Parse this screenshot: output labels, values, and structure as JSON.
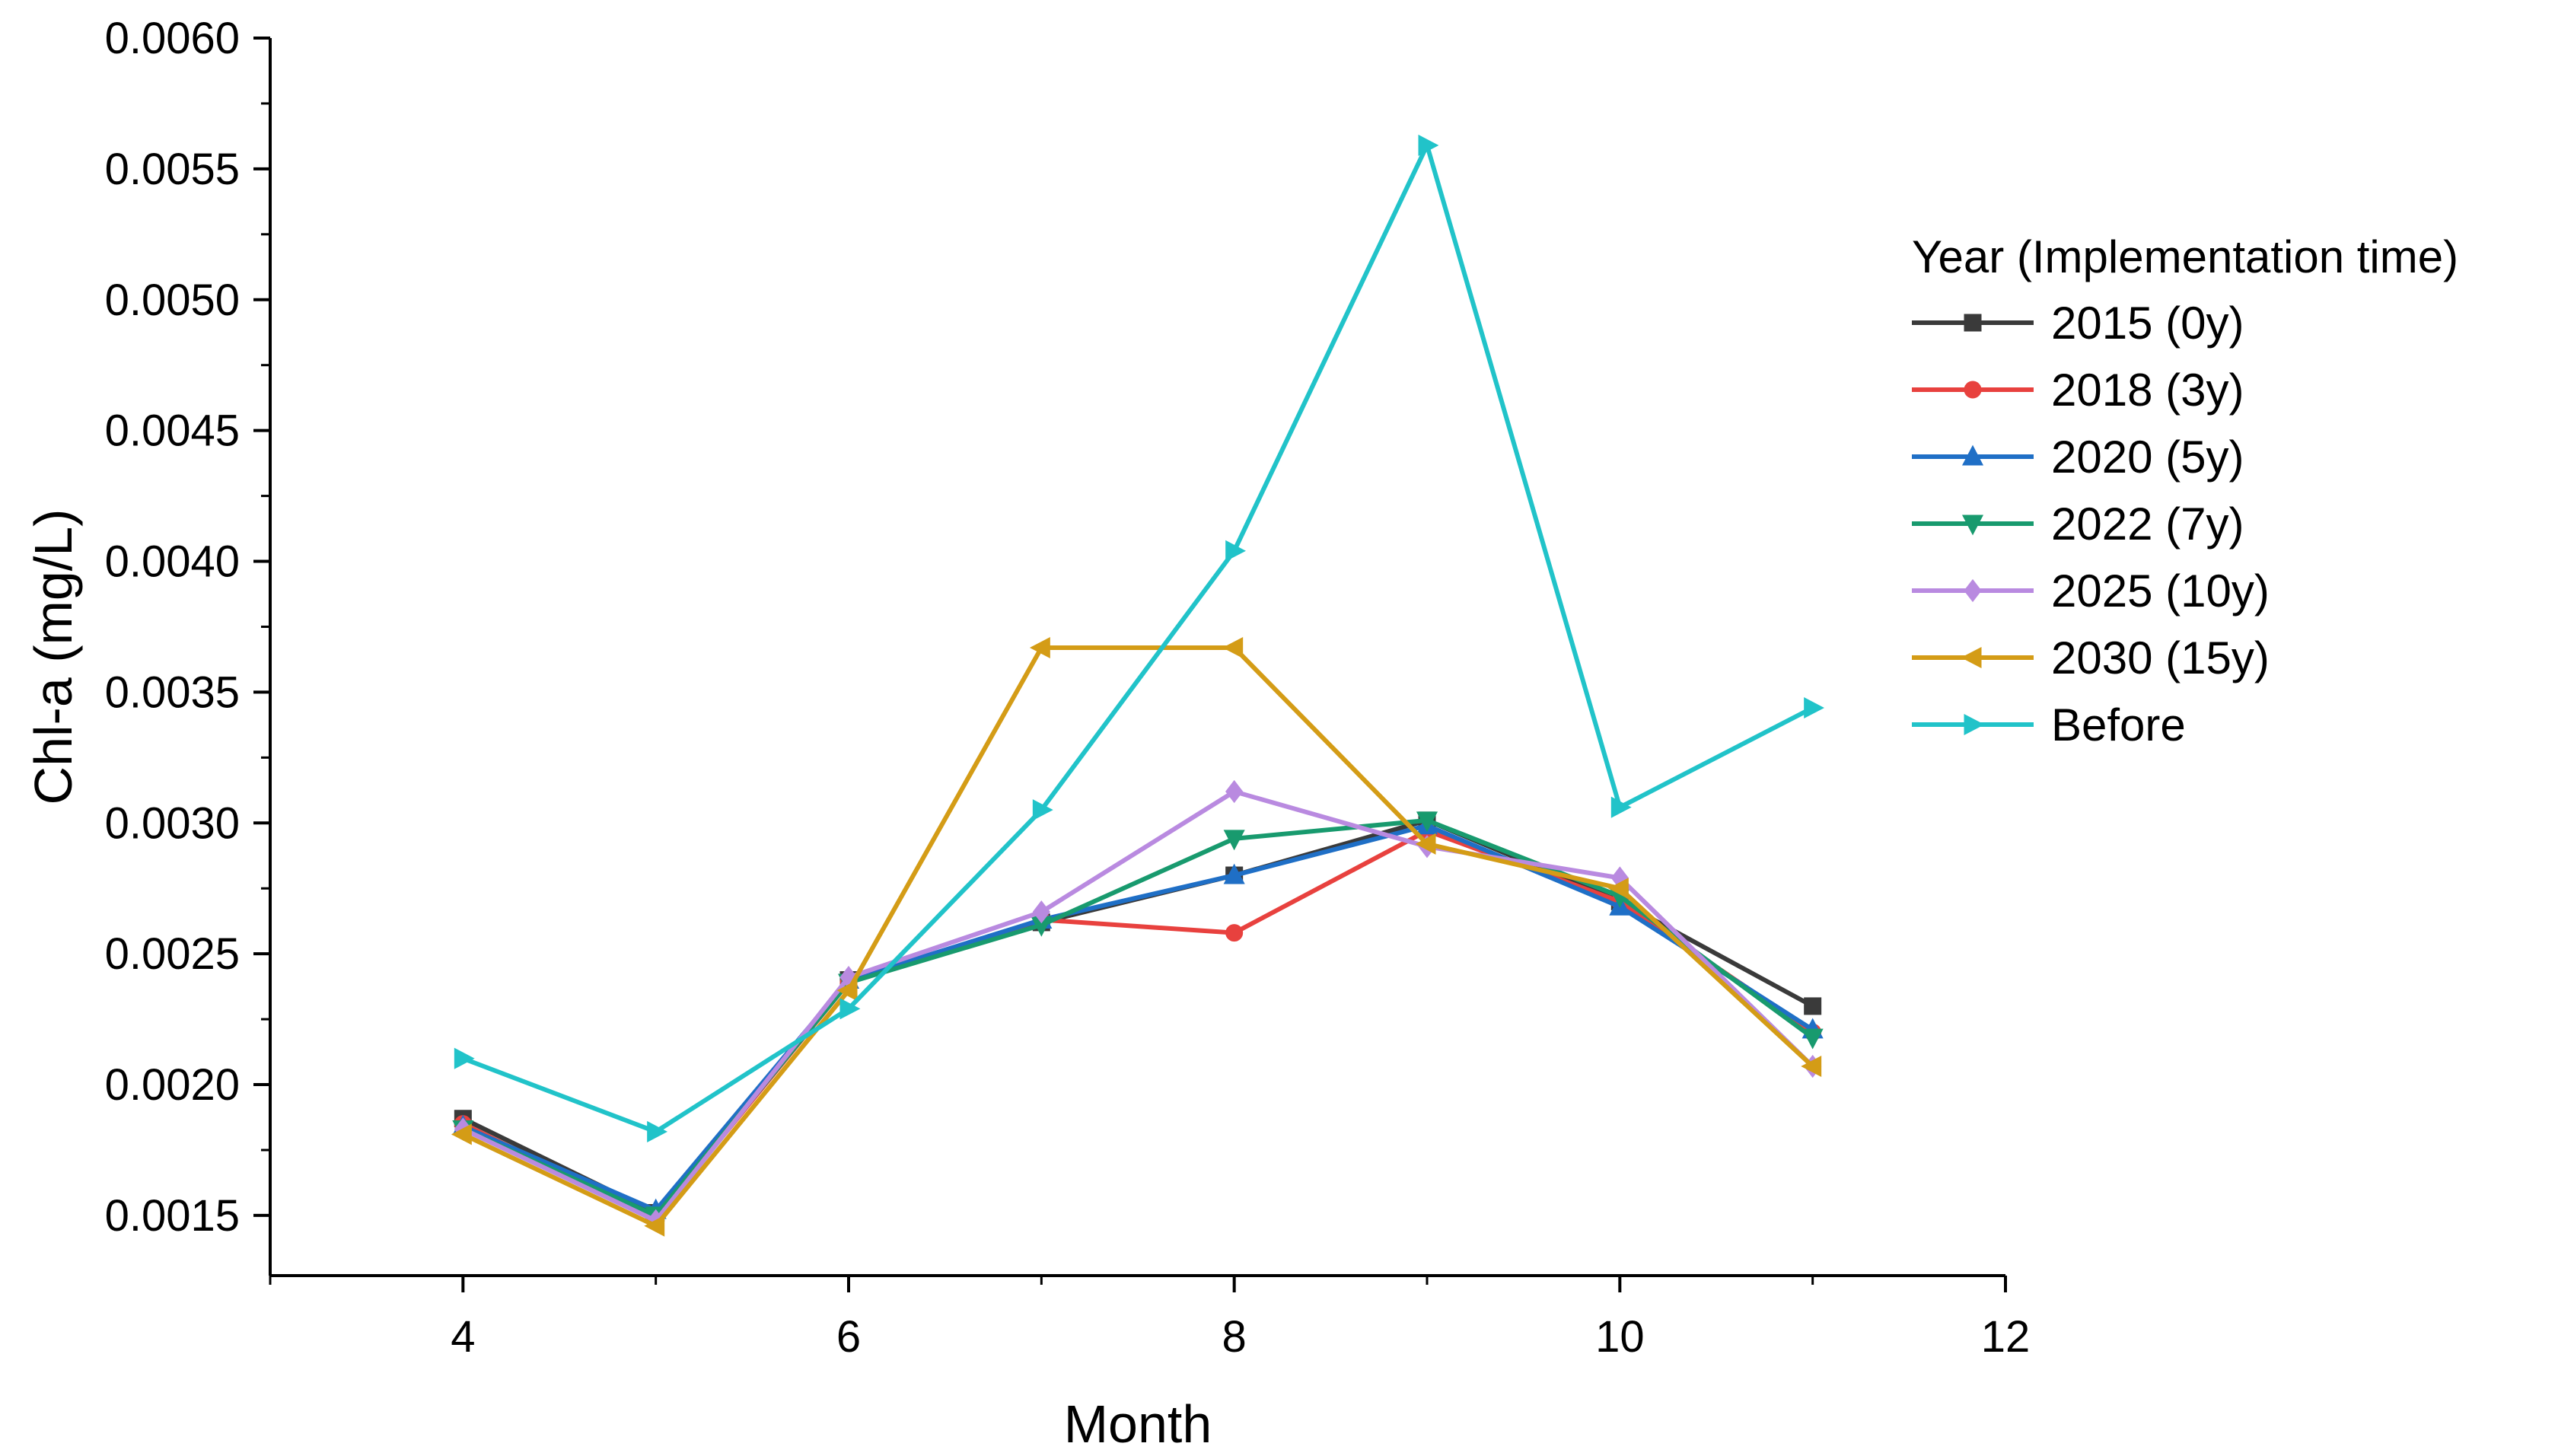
{
  "chart_data": {
    "type": "line",
    "title": "",
    "xlabel": "Month",
    "ylabel": "Chl-a (mg/L)",
    "xlim": [
      3,
      12
    ],
    "ylim": [
      0.00127,
      0.006
    ],
    "xticks": [
      4,
      6,
      8,
      10,
      12
    ],
    "xtick_labels": [
      "4",
      "6",
      "8",
      "10",
      "12"
    ],
    "yticks": [
      0.0015,
      0.002,
      0.0025,
      0.003,
      0.0035,
      0.004,
      0.0045,
      0.005,
      0.0055,
      0.006
    ],
    "ytick_labels": [
      "0.0015",
      "0.0020",
      "0.0025",
      "0.0030",
      "0.0035",
      "0.0040",
      "0.0045",
      "0.0050",
      "0.0055",
      "0.0060"
    ],
    "grid": false,
    "legend": {
      "title": "Year (Implementation time)",
      "placement": "right"
    },
    "x": [
      4,
      5,
      6,
      7,
      8,
      9,
      10,
      11
    ],
    "series": [
      {
        "name": "2015 (0y)",
        "color": "#3a3a3a",
        "marker": "square",
        "values": [
          0.00187,
          0.00151,
          0.0024,
          0.00262,
          0.0028,
          0.00301,
          0.0027,
          0.0023
        ]
      },
      {
        "name": "2018 (3y)",
        "color": "#e8413e",
        "marker": "circle",
        "values": [
          0.00185,
          0.00149,
          0.00239,
          0.00263,
          0.00258,
          0.00297,
          0.0027,
          0.0022
        ]
      },
      {
        "name": "2020 (5y)",
        "color": "#1f6fc6",
        "marker": "triangle-up",
        "values": [
          0.00184,
          0.00152,
          0.0024,
          0.00263,
          0.0028,
          0.00299,
          0.00268,
          0.00221
        ]
      },
      {
        "name": "2022 (7y)",
        "color": "#189a6e",
        "marker": "triangle-down",
        "values": [
          0.00183,
          0.0015,
          0.00239,
          0.00261,
          0.00294,
          0.00301,
          0.00272,
          0.00218
        ]
      },
      {
        "name": "2025 (10y)",
        "color": "#b98ae0",
        "marker": "diamond",
        "values": [
          0.00183,
          0.00148,
          0.00241,
          0.00266,
          0.00312,
          0.00291,
          0.00279,
          0.00207
        ]
      },
      {
        "name": "2030 (15y)",
        "color": "#d49c16",
        "marker": "triangle-left",
        "values": [
          0.00181,
          0.00146,
          0.00236,
          0.00367,
          0.00367,
          0.00292,
          0.00275,
          0.00207
        ]
      },
      {
        "name": "Before",
        "color": "#21c3c9",
        "marker": "triangle-right",
        "values": [
          0.0021,
          0.00182,
          0.00229,
          0.00305,
          0.00404,
          0.00559,
          0.00306,
          0.00344
        ]
      }
    ]
  }
}
